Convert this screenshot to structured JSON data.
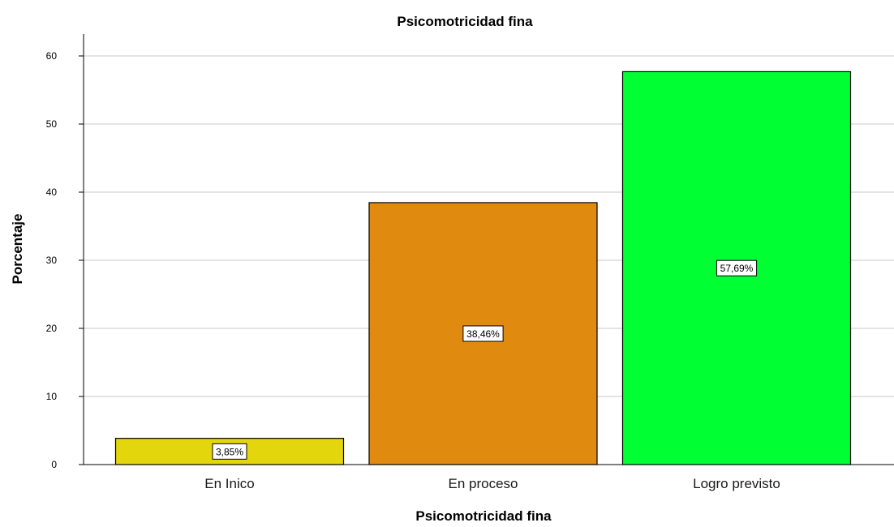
{
  "chart_data": {
    "type": "bar",
    "title": "Psicomotricidad fina",
    "xlabel": "Psicomotricidad fina",
    "ylabel": "Porcentaje",
    "categories": [
      "En Inico",
      "En proceso",
      "Logro previsto"
    ],
    "values": [
      3.85,
      38.46,
      57.69
    ],
    "data_labels": [
      "3,85%",
      "38,46%",
      "57,69%"
    ],
    "colors": [
      "#e3d60d",
      "#e08a10",
      "#00ff33"
    ],
    "ylim": [
      0,
      63
    ],
    "yticks": [
      0,
      10,
      20,
      30,
      40,
      50,
      60
    ],
    "grid": true
  }
}
